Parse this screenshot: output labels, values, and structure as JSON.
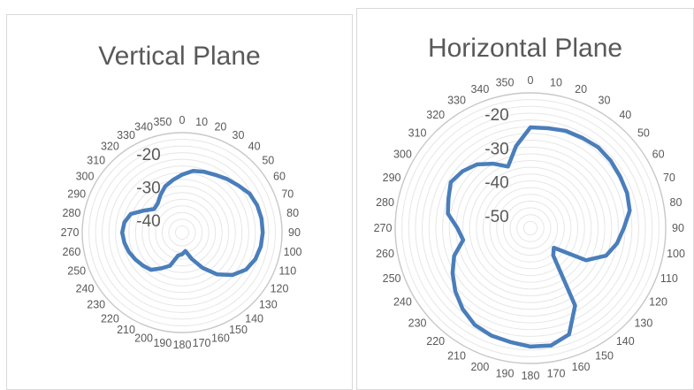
{
  "chart_data": [
    {
      "type": "radar",
      "title": "Vertical Plane",
      "angle_labels": [
        "0",
        "10",
        "20",
        "30",
        "40",
        "50",
        "60",
        "70",
        "80",
        "90",
        "100",
        "110",
        "120",
        "130",
        "140",
        "150",
        "160",
        "170",
        "180",
        "190",
        "200",
        "210",
        "220",
        "230",
        "240",
        "250",
        "260",
        "270",
        "280",
        "290",
        "300",
        "310",
        "320",
        "330",
        "340",
        "350"
      ],
      "r_tick_labels": [
        "-20",
        "-30",
        "-40"
      ],
      "r_ticks": [
        -20,
        -30,
        -40
      ],
      "r_min": -45,
      "r_max": -15,
      "angles": [
        0,
        10,
        20,
        30,
        40,
        50,
        60,
        70,
        80,
        90,
        100,
        110,
        120,
        130,
        140,
        150,
        160,
        170,
        180,
        190,
        200,
        210,
        220,
        230,
        240,
        250,
        260,
        270,
        280,
        290,
        300,
        310,
        320,
        330,
        340,
        350
      ],
      "series": [
        {
          "color": "#4a7ebb",
          "values": [
            -27.6,
            -26.2,
            -25.6,
            -25.0,
            -24.0,
            -23.0,
            -21.6,
            -21.0,
            -20.8,
            -20.8,
            -21.0,
            -21.6,
            -22.8,
            -25.2,
            -28.6,
            -32.8,
            -36.6,
            -39.4,
            -38.5,
            -38.0,
            -34.4,
            -32.6,
            -30.4,
            -29.6,
            -28.8,
            -28.0,
            -27.4,
            -27.0,
            -27.4,
            -28.6,
            -31.8,
            -34.0,
            -33.6,
            -32.0,
            -30.2,
            -29.0
          ]
        }
      ]
    },
    {
      "type": "radar",
      "title": "Horizontal Plane",
      "angle_labels": [
        "0",
        "10",
        "20",
        "30",
        "40",
        "50",
        "60",
        "70",
        "80",
        "90",
        "100",
        "110",
        "120",
        "130",
        "140",
        "150",
        "160",
        "170",
        "180",
        "190",
        "200",
        "210",
        "220",
        "230",
        "240",
        "250",
        "260",
        "270",
        "280",
        "290",
        "300",
        "310",
        "320",
        "330",
        "340",
        "350"
      ],
      "r_tick_labels": [
        "-20",
        "-30",
        "-40",
        "-50"
      ],
      "r_ticks": [
        -20,
        -30,
        -40,
        -50
      ],
      "r_min": -55,
      "r_max": -15,
      "angles": [
        0,
        10,
        20,
        30,
        40,
        50,
        60,
        70,
        80,
        90,
        100,
        110,
        120,
        130,
        140,
        150,
        160,
        170,
        180,
        190,
        200,
        210,
        220,
        230,
        240,
        250,
        260,
        270,
        280,
        290,
        300,
        310,
        320,
        330,
        340,
        350
      ],
      "series": [
        {
          "color": "#4a7ebb",
          "values": [
            -25.2,
            -25.0,
            -24.4,
            -24.2,
            -23.8,
            -24.0,
            -24.4,
            -24.6,
            -25.2,
            -27.4,
            -29.0,
            -31.2,
            -36.0,
            -46.0,
            -44.5,
            -28.6,
            -21.6,
            -19.8,
            -20.0,
            -20.8,
            -21.2,
            -22.0,
            -23.8,
            -26.0,
            -28.4,
            -31.0,
            -34.8,
            -33.4,
            -30.2,
            -29.2,
            -27.8,
            -28.8,
            -30.4,
            -33.0,
            -35.6,
            -30.4
          ]
        }
      ]
    }
  ]
}
